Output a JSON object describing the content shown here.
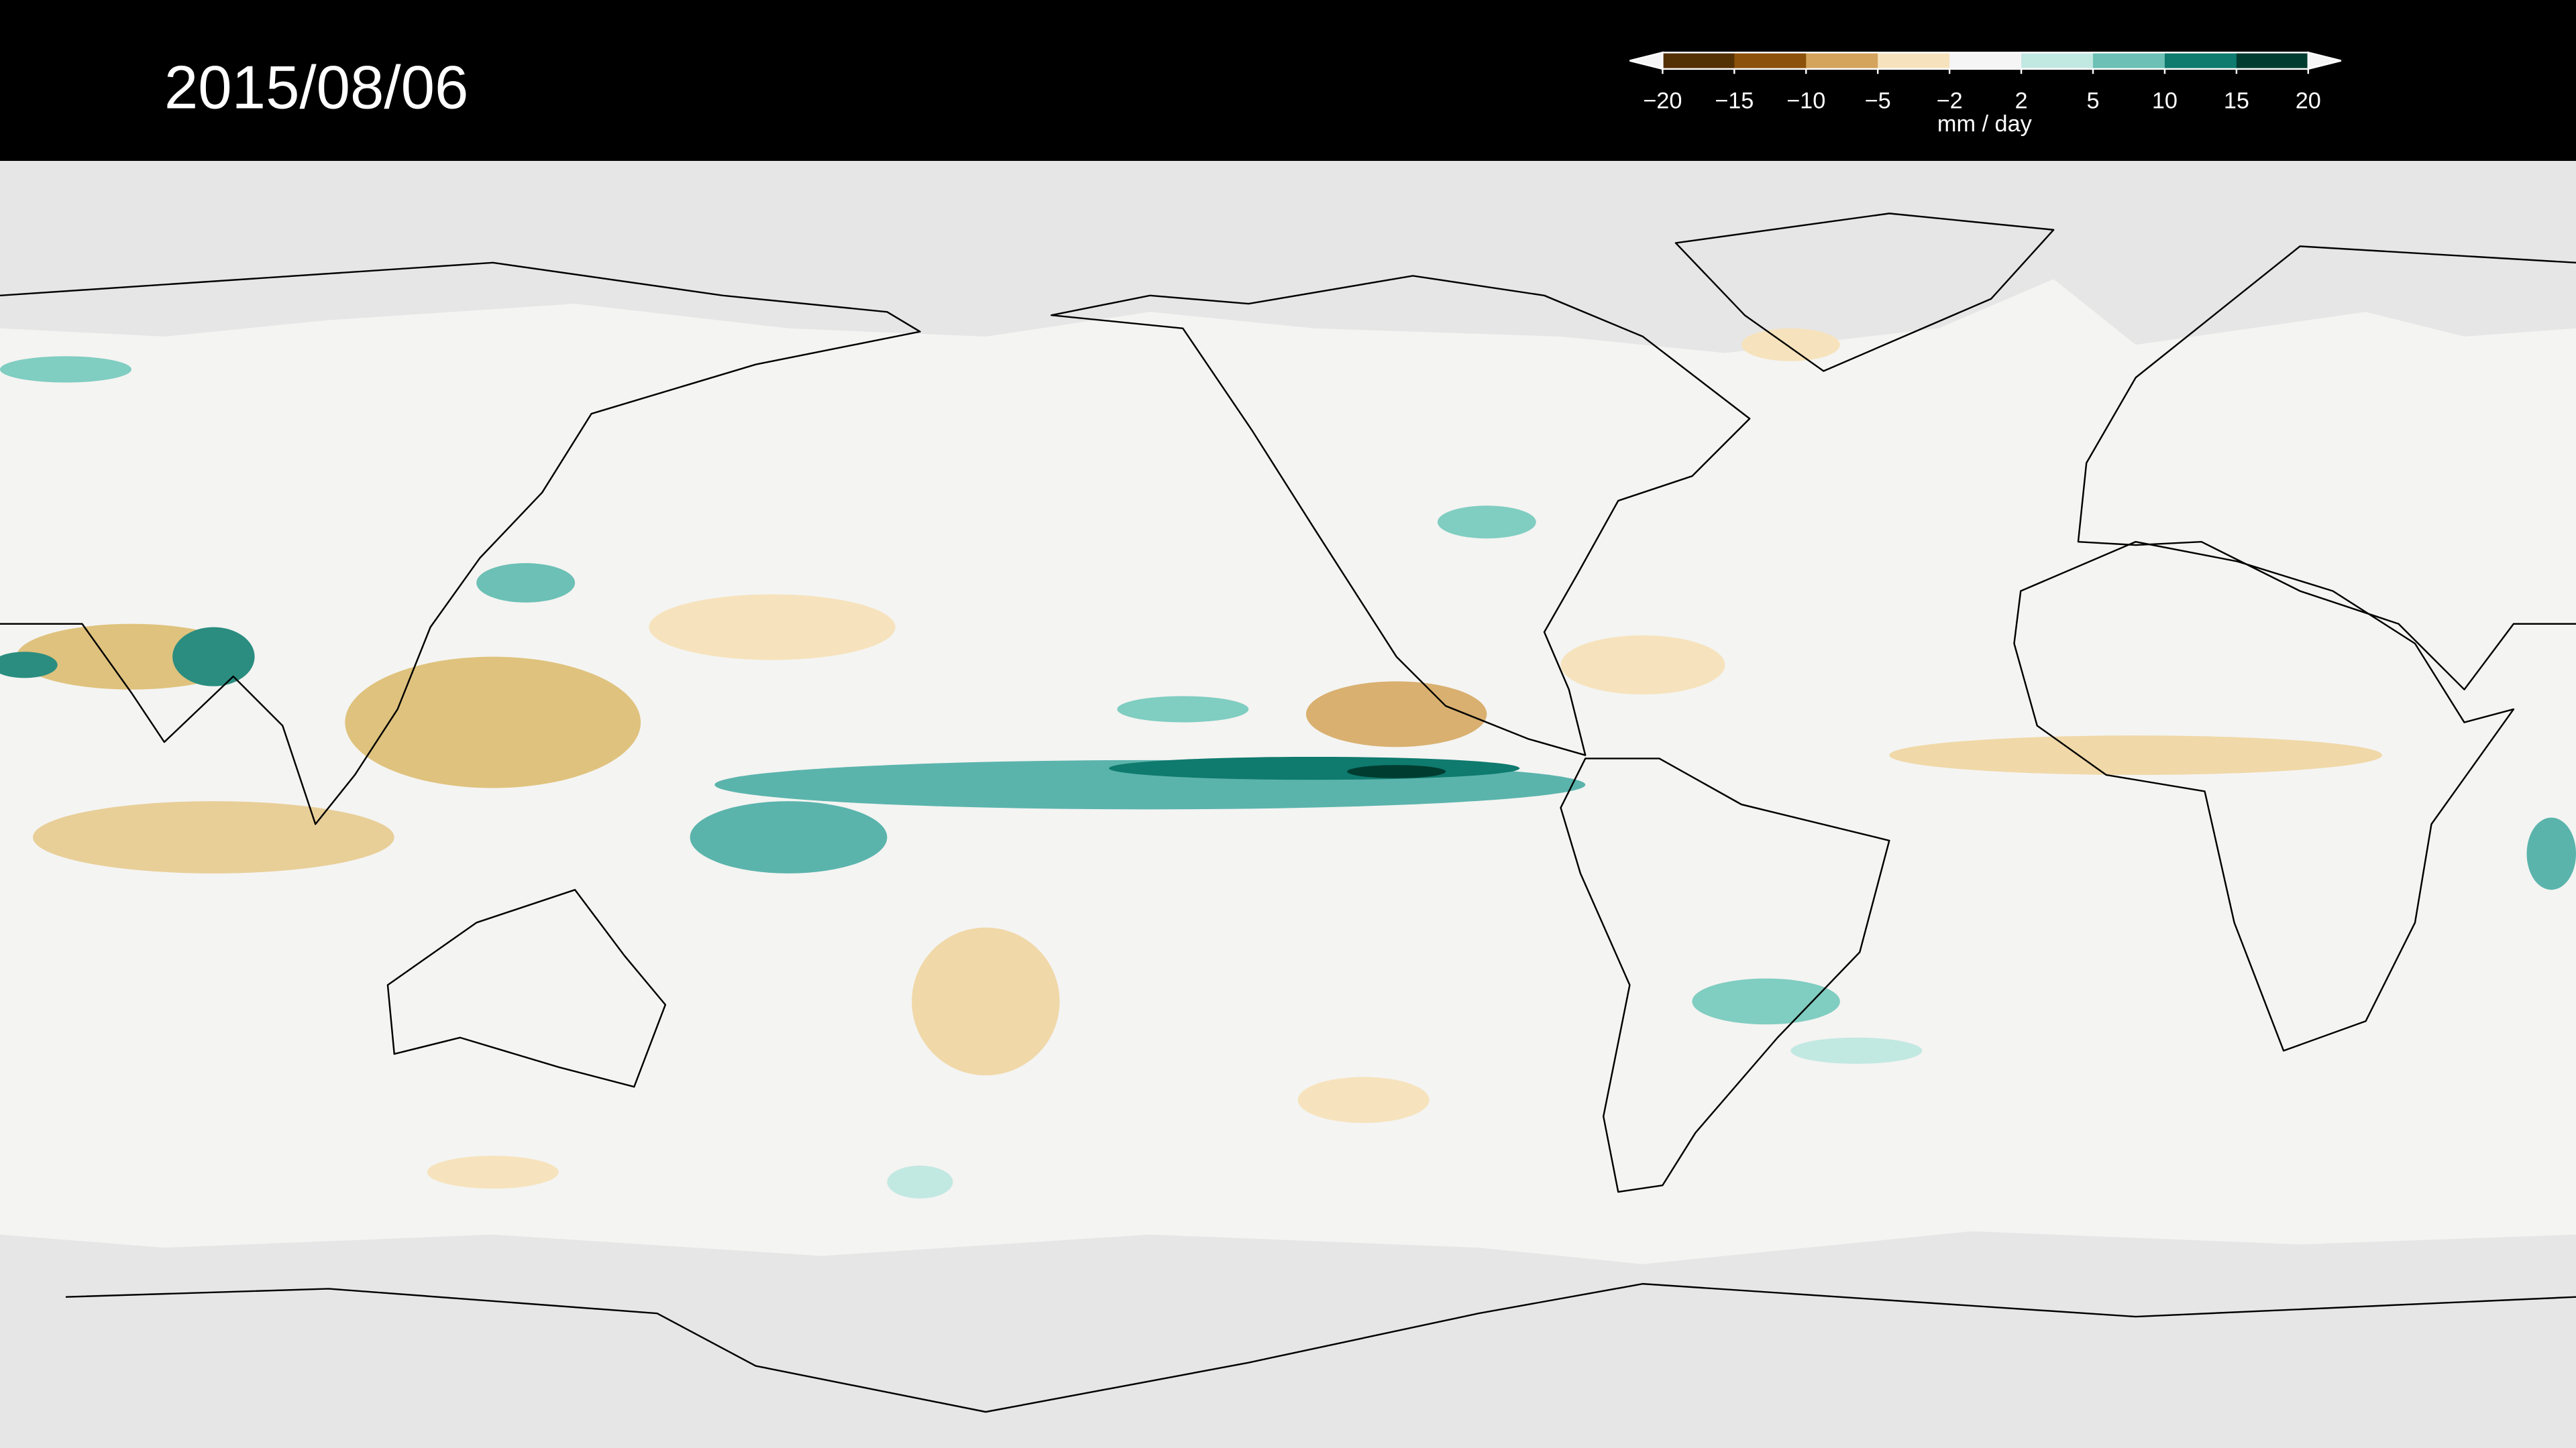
{
  "date": "2015/08/06",
  "colorbar": {
    "ticks": [
      "−20",
      "−15",
      "−10",
      "−5",
      "−2",
      "2",
      "5",
      "10",
      "15",
      "20"
    ],
    "colors": [
      "#543005",
      "#8c510a",
      "#d4a35c",
      "#f6e3bd",
      "#f5f5f5",
      "#c2e8e2",
      "#6cc0b5",
      "#0f7a6e",
      "#003c30"
    ],
    "unit": "mm / day"
  }
}
